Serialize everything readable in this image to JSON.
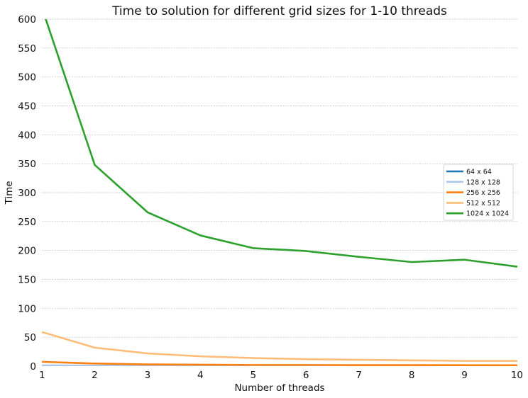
{
  "chart_data": {
    "type": "line",
    "title": "Time to solution for different grid sizes for 1-10 threads",
    "xlabel": "Number of threads",
    "ylabel": "Time",
    "xlim": [
      1,
      10
    ],
    "ylim": [
      0,
      600
    ],
    "x_ticks": [
      "1",
      "2",
      "3",
      "4",
      "5",
      "6",
      "7",
      "8",
      "9",
      "10"
    ],
    "y_ticks": [
      "0",
      "50",
      "100",
      "150",
      "200",
      "250",
      "300",
      "350",
      "400",
      "450",
      "500",
      "550",
      "600"
    ],
    "grid": "horizontal",
    "legend_position": "center-right",
    "x": [
      1,
      2,
      3,
      4,
      5,
      6,
      7,
      8,
      9,
      10
    ],
    "series": [
      {
        "name": "64 x 64",
        "color": "#1f77b4",
        "values": [
          0.2,
          0.15,
          0.12,
          0.1,
          0.1,
          0.1,
          0.1,
          0.1,
          0.1,
          0.1
        ]
      },
      {
        "name": "128 x 128",
        "color": "#aec7e8",
        "values": [
          1.3,
          0.9,
          0.7,
          0.6,
          0.5,
          0.5,
          0.5,
          0.5,
          0.5,
          0.5
        ]
      },
      {
        "name": "256 x 256",
        "color": "#ff7f0e",
        "values": [
          7.5,
          4.5,
          3.0,
          2.5,
          2.0,
          2.0,
          1.8,
          1.7,
          1.6,
          1.5
        ]
      },
      {
        "name": "512 x 512",
        "color": "#ffbb78",
        "values": [
          59,
          32,
          22,
          17,
          14,
          12,
          11,
          10,
          9,
          9
        ]
      },
      {
        "name": "1024 x 1024",
        "color": "#2ca02c",
        "values": [
          620,
          348,
          266,
          226,
          204,
          199,
          189,
          180,
          184,
          172
        ]
      }
    ]
  }
}
